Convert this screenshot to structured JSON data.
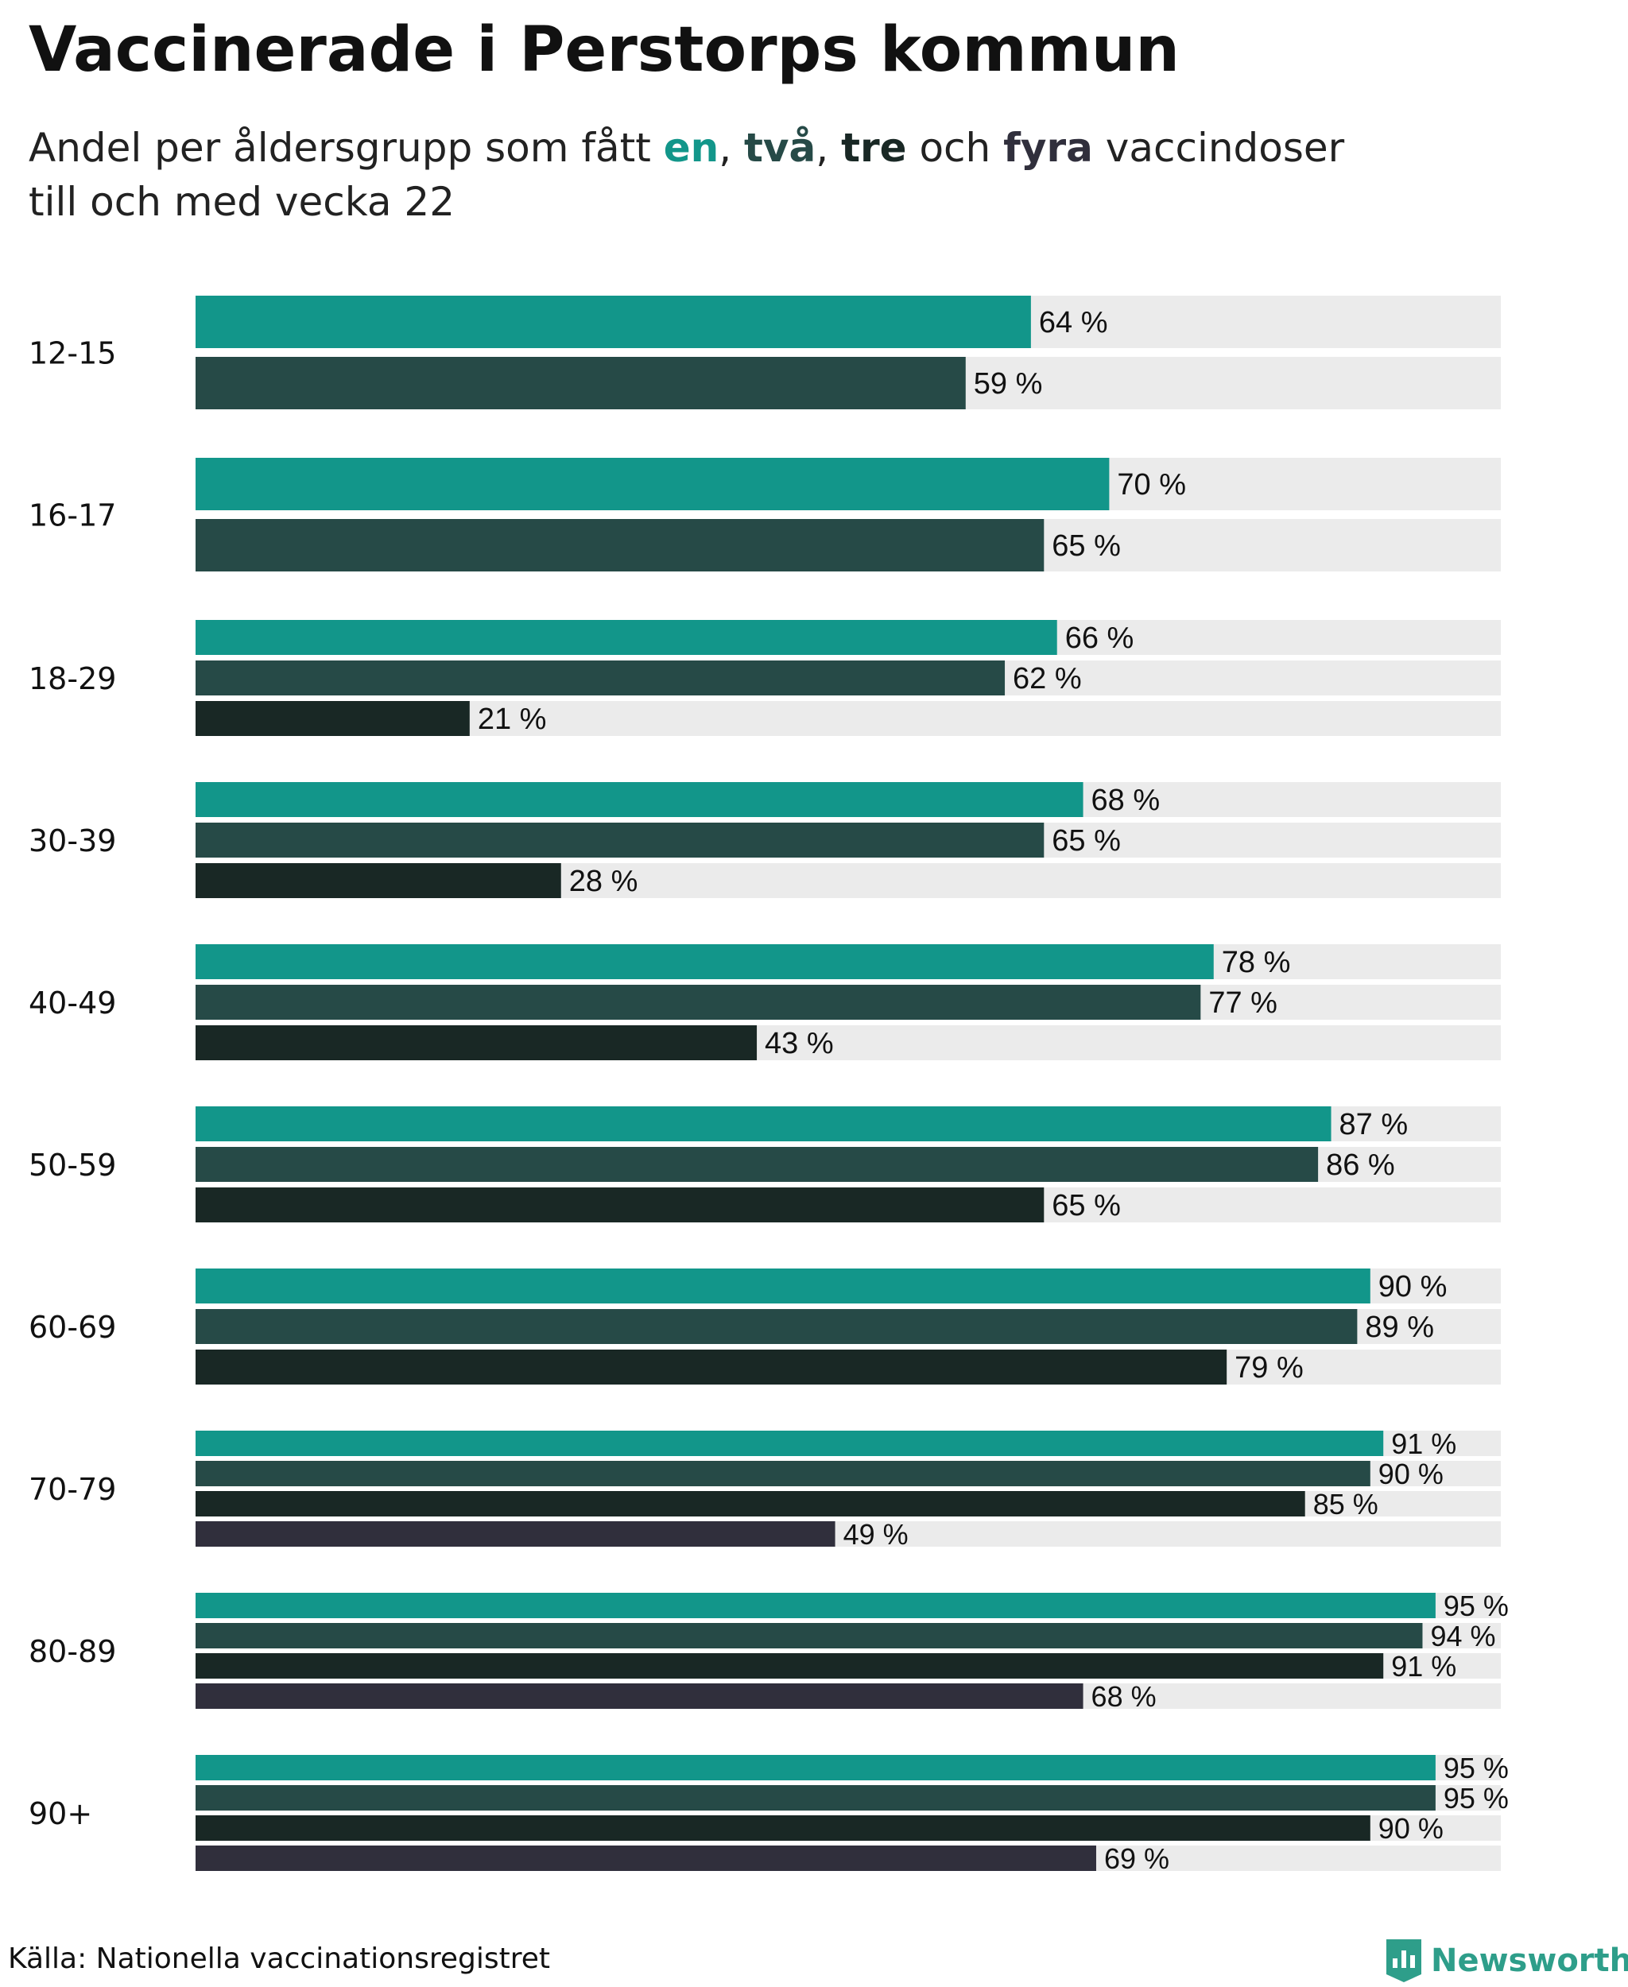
{
  "header": {
    "title": "Vaccinerade i Perstorps kommun",
    "subtitle_prefix": "Andel per åldersgrupp som fått ",
    "dose_words": [
      "en",
      "två",
      "tre",
      "fyra"
    ],
    "sep1": ", ",
    "sep2": ", ",
    "sep3": " och ",
    "subtitle_suffix": " vaccindoser",
    "subtitle_line2": "till och med vecka 22"
  },
  "footer": {
    "source": "Källa: Nationella vaccinationsregistret",
    "brand": "Newsworthy"
  },
  "colors": {
    "dose1": "#12968a",
    "dose2": "#264a47",
    "dose3": "#192825",
    "dose4": "#302f3c",
    "track": "#ebebeb"
  },
  "icons": [
    "newsworthy-logo-icon"
  ],
  "chart_data": {
    "type": "bar",
    "orientation": "horizontal",
    "value_suffix": " %",
    "xlim": [
      0,
      100
    ],
    "series": [
      {
        "name": "en"
      },
      {
        "name": "två"
      },
      {
        "name": "tre"
      },
      {
        "name": "fyra"
      }
    ],
    "categories": [
      "12-15",
      "16-17",
      "18-29",
      "30-39",
      "40-49",
      "50-59",
      "60-69",
      "70-79",
      "80-89",
      "90+"
    ],
    "groups": [
      {
        "label": "12-15",
        "values": [
          64,
          59
        ]
      },
      {
        "label": "16-17",
        "values": [
          70,
          65
        ]
      },
      {
        "label": "18-29",
        "values": [
          66,
          62,
          21
        ]
      },
      {
        "label": "30-39",
        "values": [
          68,
          65,
          28
        ]
      },
      {
        "label": "40-49",
        "values": [
          78,
          77,
          43
        ]
      },
      {
        "label": "50-59",
        "values": [
          87,
          86,
          65
        ]
      },
      {
        "label": "60-69",
        "values": [
          90,
          89,
          79
        ]
      },
      {
        "label": "70-79",
        "values": [
          91,
          90,
          85,
          49
        ]
      },
      {
        "label": "80-89",
        "values": [
          95,
          94,
          91,
          68
        ]
      },
      {
        "label": "90+",
        "values": [
          95,
          95,
          90,
          69
        ]
      }
    ]
  }
}
